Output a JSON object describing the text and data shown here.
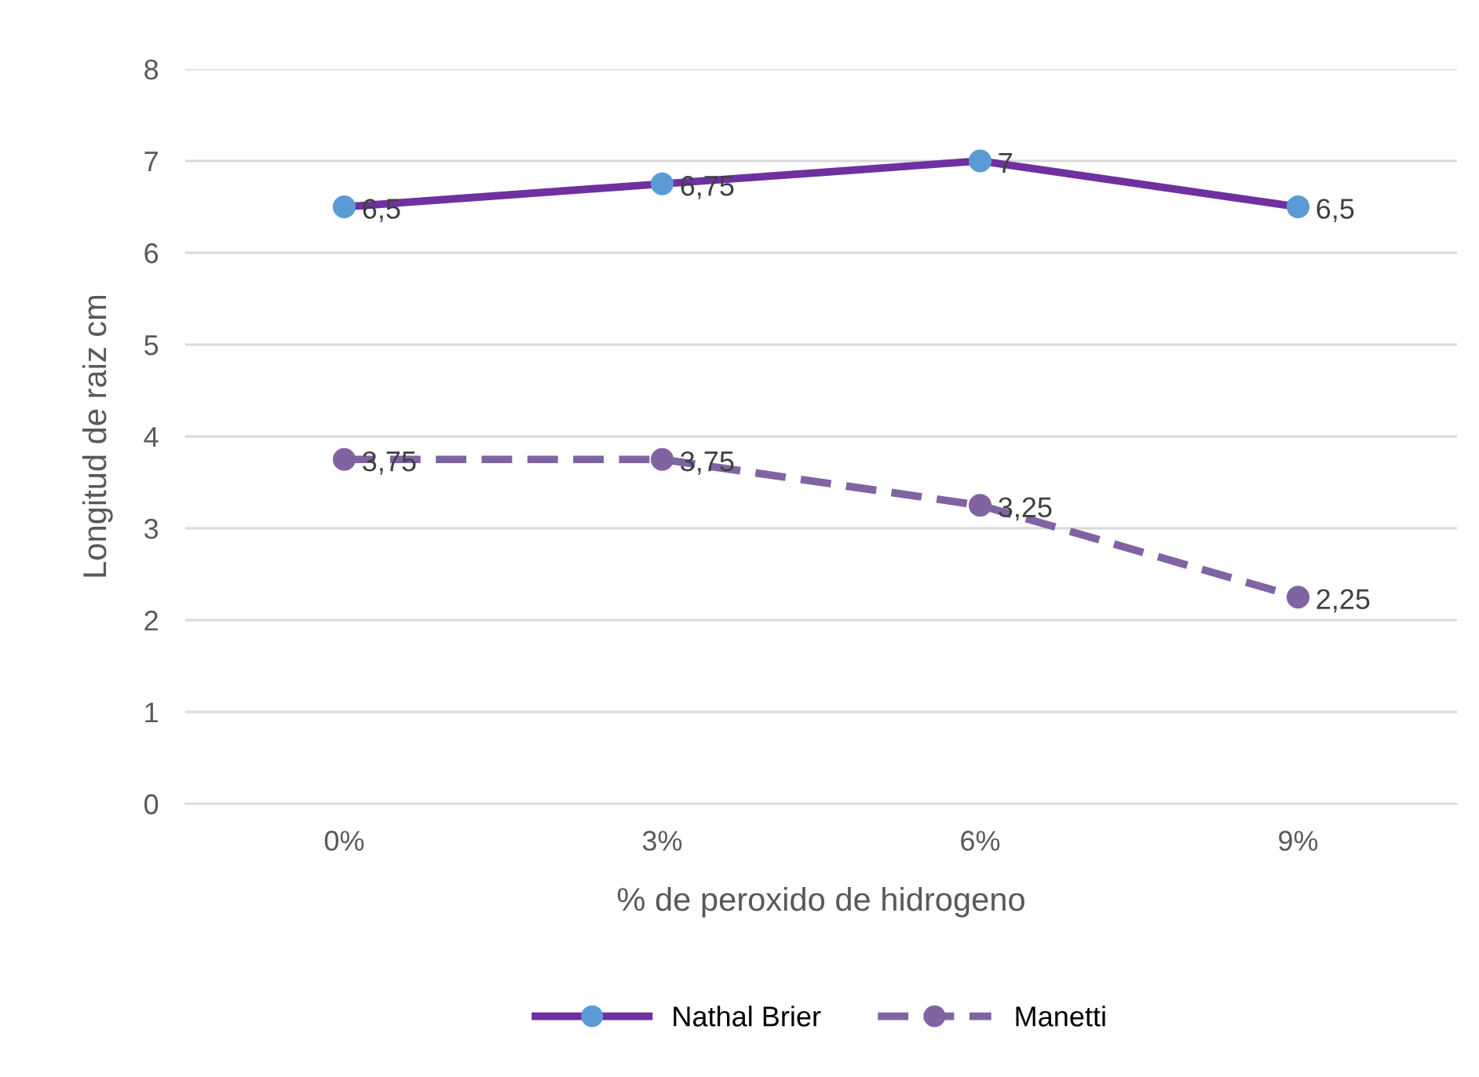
{
  "chart_data": {
    "type": "line",
    "xlabel": "% de peroxido de hidrogeno",
    "ylabel": "Longitud de raiz cm",
    "categories": [
      "0%",
      "3%",
      "6%",
      "9%"
    ],
    "series": [
      {
        "name": "Nathal Brier",
        "color": "#7030a0",
        "colors": [
          "#5b9bd5",
          "#5b9bd5",
          "#5b9bd5",
          "#5b9bd5"
        ],
        "line_style": "solid",
        "values": [
          6.5,
          6.75,
          7,
          6.5
        ],
        "value_labels": [
          "6,5",
          "6,75",
          "7",
          "6,5"
        ]
      },
      {
        "name": "Manetti",
        "color": "#8064a2",
        "colors": [
          "#8064a2",
          "#8064a2",
          "#8064a2",
          "#8064a2"
        ],
        "line_style": "dashed",
        "values": [
          3.75,
          3.75,
          3.25,
          2.25
        ],
        "value_labels": [
          "3,75",
          "3,75",
          "3,25",
          "2,25"
        ]
      }
    ],
    "ylim": [
      0,
      8
    ],
    "yticks": [
      0,
      1,
      2,
      3,
      4,
      5,
      6,
      7,
      8
    ],
    "grid": "y",
    "legend": "bottom",
    "marker": "circle",
    "data_labels": true
  }
}
